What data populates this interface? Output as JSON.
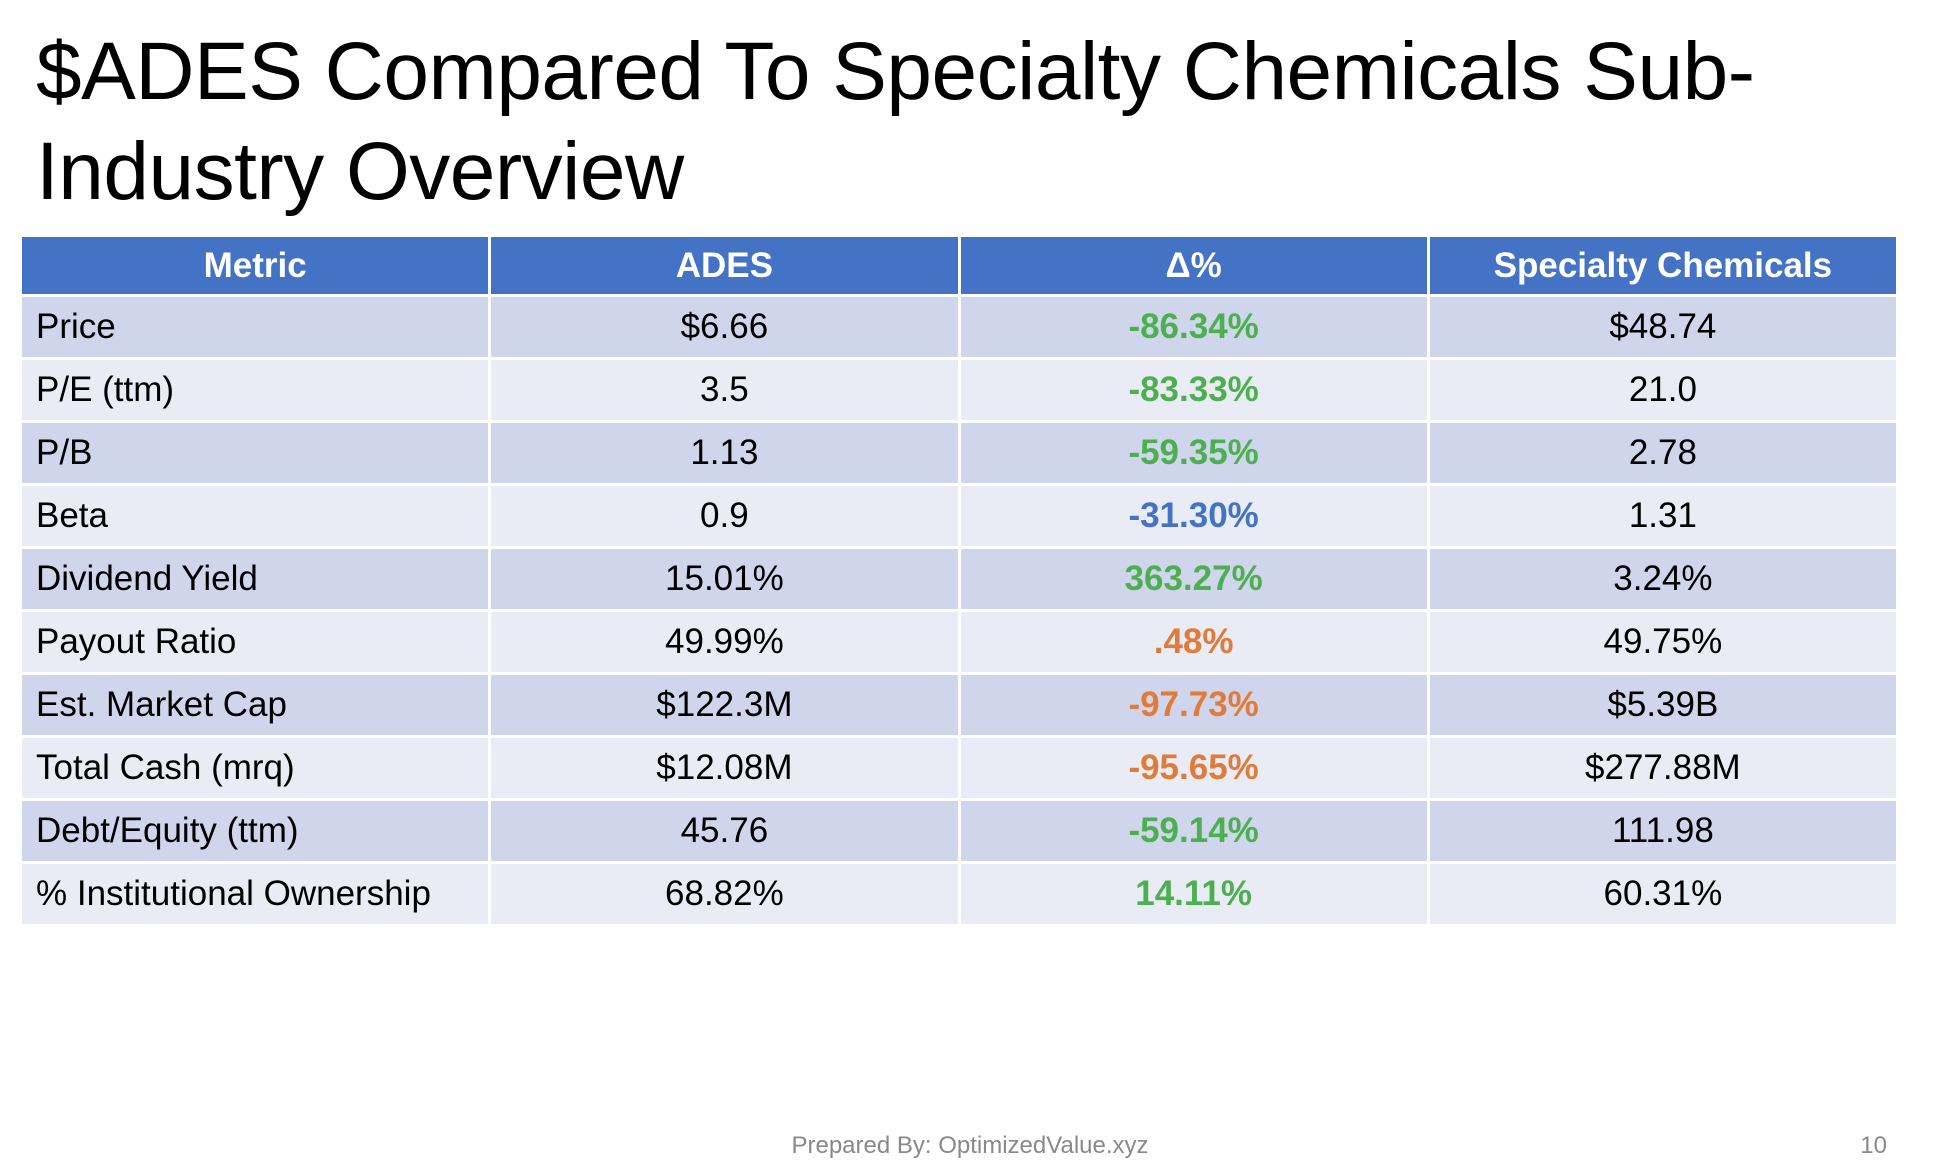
{
  "title": "$ADES Compared To Specialty Chemicals Sub-Industry Overview",
  "colors": {
    "header_bg": "#4472c4",
    "row_odd": "#cfd5ea",
    "row_even": "#e9ebf5",
    "delta_green": "#4caf50",
    "delta_blue": "#4472c4",
    "delta_orange": "#e07b39"
  },
  "table": {
    "headers": [
      "Metric",
      "ADES",
      "Δ%",
      "Specialty Chemicals"
    ],
    "rows": [
      {
        "metric": "Price",
        "ades": "$6.66",
        "delta": "-86.34%",
        "delta_color": "#4caf50",
        "sector": "$48.74"
      },
      {
        "metric": "P/E (ttm)",
        "ades": "3.5",
        "delta": "-83.33%",
        "delta_color": "#4caf50",
        "sector": "21.0"
      },
      {
        "metric": "P/B",
        "ades": "1.13",
        "delta": "-59.35%",
        "delta_color": "#4caf50",
        "sector": "2.78"
      },
      {
        "metric": "Beta",
        "ades": "0.9",
        "delta": "-31.30%",
        "delta_color": "#4472c4",
        "sector": "1.31"
      },
      {
        "metric": "Dividend Yield",
        "ades": "15.01%",
        "delta": "363.27%",
        "delta_color": "#4caf50",
        "sector": "3.24%"
      },
      {
        "metric": "Payout Ratio",
        "ades": "49.99%",
        "delta": ".48%",
        "delta_color": "#e07b39",
        "sector": "49.75%"
      },
      {
        "metric": "Est. Market Cap",
        "ades": "$122.3M",
        "delta": "-97.73%",
        "delta_color": "#e07b39",
        "sector": "$5.39B"
      },
      {
        "metric": "Total Cash (mrq)",
        "ades": "$12.08M",
        "delta": "-95.65%",
        "delta_color": "#e07b39",
        "sector": "$277.88M"
      },
      {
        "metric": "Debt/Equity (ttm)",
        "ades": "45.76",
        "delta": "-59.14%",
        "delta_color": "#4caf50",
        "sector": "111.98"
      },
      {
        "metric": "% Institutional Ownership",
        "ades": "68.82%",
        "delta": "14.11%",
        "delta_color": "#4caf50",
        "sector": "60.31%"
      }
    ]
  },
  "footer": {
    "prepared_by": "Prepared By: OptimizedValue.xyz",
    "page_number": "10"
  }
}
